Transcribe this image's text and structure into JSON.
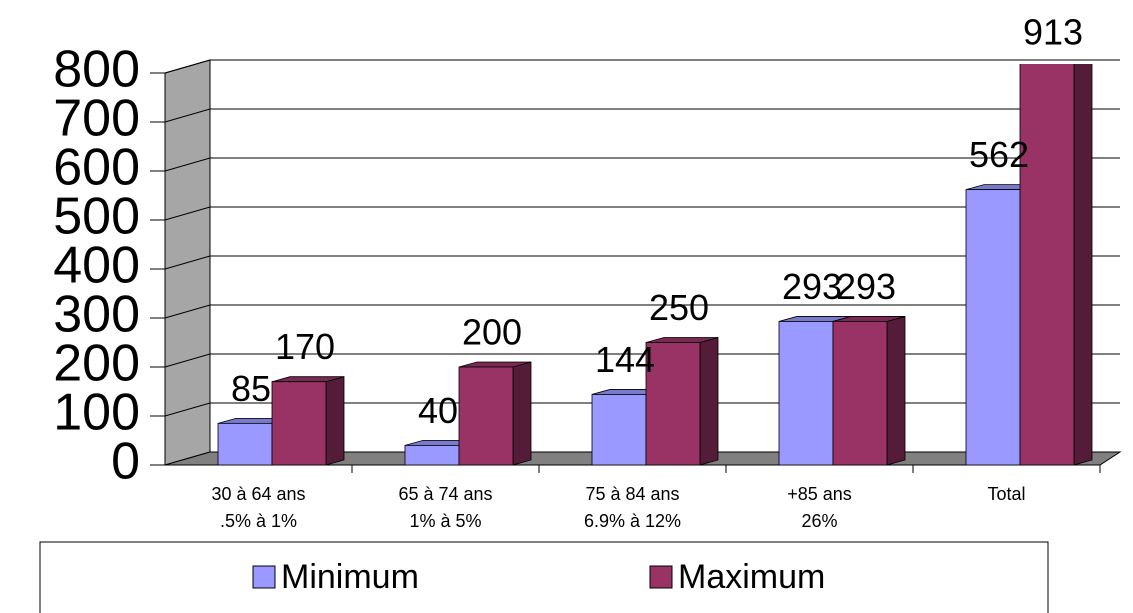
{
  "chart_data": {
    "type": "bar3d",
    "categories": [
      [
        "30 à 64 ans",
        ".5% à 1%"
      ],
      [
        "65 à 74 ans",
        "1% à 5%"
      ],
      [
        "75 à 84 ans",
        "6.9% à 12%"
      ],
      [
        "+85 ans",
        "26%"
      ],
      [
        "Total"
      ]
    ],
    "series": [
      {
        "name": "Minimum",
        "color": "#9999ff",
        "values": [
          85,
          40,
          144,
          293,
          562
        ]
      },
      {
        "name": "Maximum",
        "color": "#993366",
        "values": [
          170,
          200,
          250,
          293,
          913
        ]
      }
    ],
    "ylim": [
      0,
      800
    ],
    "yticks": [
      0,
      100,
      200,
      300,
      400,
      500,
      600,
      700,
      800
    ],
    "grid": true,
    "legend": "bottom"
  }
}
